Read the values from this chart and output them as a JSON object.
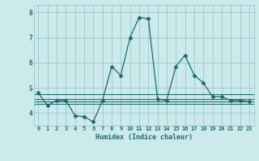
{
  "xlabel": "Humidex (Indice chaleur)",
  "background_color": "#cce9ec",
  "line_color": "#1a6b6e",
  "grid_color": "#9ecece",
  "xlim": [
    -0.5,
    23.5
  ],
  "ylim": [
    3.5,
    8.3
  ],
  "yticks": [
    4,
    5,
    6,
    7,
    8
  ],
  "xticks": [
    0,
    1,
    2,
    3,
    4,
    5,
    6,
    7,
    8,
    9,
    10,
    11,
    12,
    13,
    14,
    15,
    16,
    17,
    18,
    19,
    20,
    21,
    22,
    23
  ],
  "main_series": [
    4.8,
    4.3,
    4.5,
    4.5,
    3.9,
    3.85,
    3.65,
    4.5,
    5.85,
    5.5,
    7.0,
    7.8,
    7.75,
    4.55,
    4.5,
    5.85,
    6.3,
    5.5,
    5.2,
    4.65,
    4.65,
    4.5,
    4.5,
    4.45
  ],
  "flat_lines": [
    {
      "y": 4.75,
      "x_start": 0,
      "x_end": 23
    },
    {
      "y": 4.55,
      "x_start": 0,
      "x_end": 23
    },
    {
      "y": 4.45,
      "x_start": 0,
      "x_end": 23
    },
    {
      "y": 4.35,
      "x_start": 0,
      "x_end": 23
    }
  ],
  "marker": "D",
  "markersize": 2.5,
  "linewidth": 0.9
}
